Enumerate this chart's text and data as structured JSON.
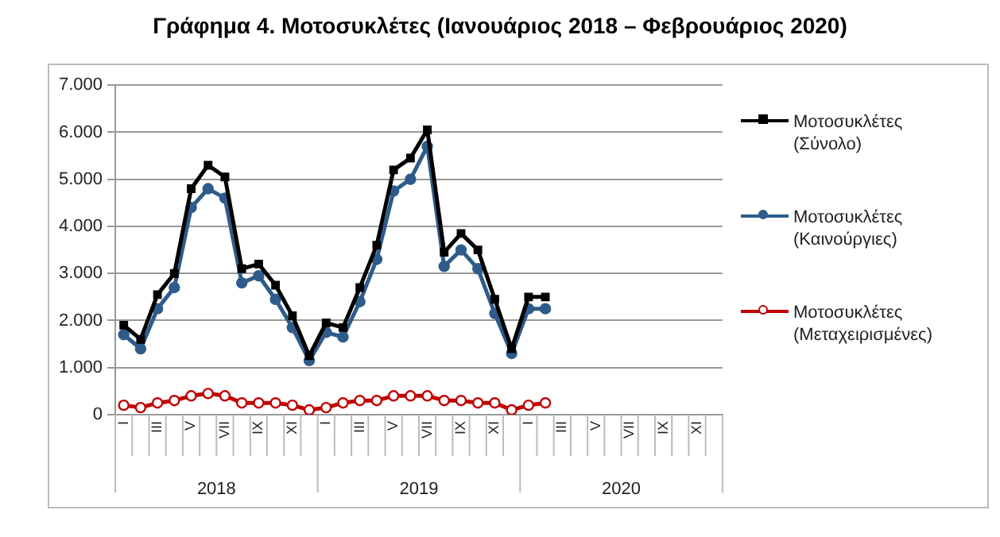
{
  "chart_data": {
    "type": "line",
    "title": "Γράφημα 4. Μοτοσυκλέτες (Ιανουάριος 2018 – Φεβρουάριος 2020)",
    "categories": [
      "I",
      null,
      "III",
      null,
      "V",
      null,
      "VII",
      null,
      "IX",
      null,
      "XI",
      null,
      "I",
      null,
      "III",
      null,
      "V",
      null,
      "VII",
      null,
      "IX",
      null,
      "XI",
      null,
      "I",
      null,
      "III",
      null,
      "V",
      null,
      "VII",
      null,
      "IX",
      null,
      "XI",
      null
    ],
    "series": [
      {
        "name": "Μοτοσυκλέτες (Σύνολο)",
        "color": "#000000",
        "marker": "square",
        "values": [
          1900,
          1600,
          2550,
          3000,
          4800,
          5300,
          5050,
          3100,
          3200,
          2750,
          2100,
          1250,
          1950,
          1850,
          2700,
          3600,
          5200,
          5450,
          6050,
          3450,
          3850,
          3500,
          2450,
          1400,
          2500,
          2500,
          null,
          null,
          null,
          null,
          null,
          null,
          null,
          null,
          null,
          null
        ]
      },
      {
        "name": "Μοτοσυκλέτες (Καινούργιες)",
        "color": "#2e5c8a",
        "marker": "circle",
        "values": [
          1700,
          1400,
          2250,
          2700,
          4400,
          4800,
          4600,
          2800,
          2950,
          2450,
          1850,
          1150,
          1750,
          1650,
          2400,
          3300,
          4750,
          5000,
          5700,
          3150,
          3500,
          3100,
          2150,
          1300,
          2250,
          2250,
          null,
          null,
          null,
          null,
          null,
          null,
          null,
          null,
          null,
          null
        ]
      },
      {
        "name": "Μοτοσυκλέτες (Μεταχειρισμένες)",
        "color": "#c00000",
        "marker": "circle",
        "values": [
          200,
          150,
          250,
          300,
          400,
          450,
          400,
          250,
          250,
          250,
          200,
          100,
          150,
          250,
          300,
          300,
          400,
          400,
          400,
          300,
          300,
          250,
          250,
          100,
          200,
          250,
          null,
          null,
          null,
          null,
          null,
          null,
          null,
          null,
          null,
          null
        ]
      }
    ],
    "annotations": [
      "2018",
      "2019",
      "2020"
    ],
    "ylim": [
      0,
      7000
    ],
    "yticks": [
      {
        "value": 0,
        "label": "0"
      },
      {
        "value": 1000,
        "label": "1.000"
      },
      {
        "value": 2000,
        "label": "2.000"
      },
      {
        "value": 3000,
        "label": "3.000"
      },
      {
        "value": 4000,
        "label": "4.000"
      },
      {
        "value": 5000,
        "label": "5.000"
      },
      {
        "value": 6000,
        "label": "6.000"
      },
      {
        "value": 7000,
        "label": "7.000"
      }
    ],
    "grid": "y",
    "legend": "right"
  }
}
